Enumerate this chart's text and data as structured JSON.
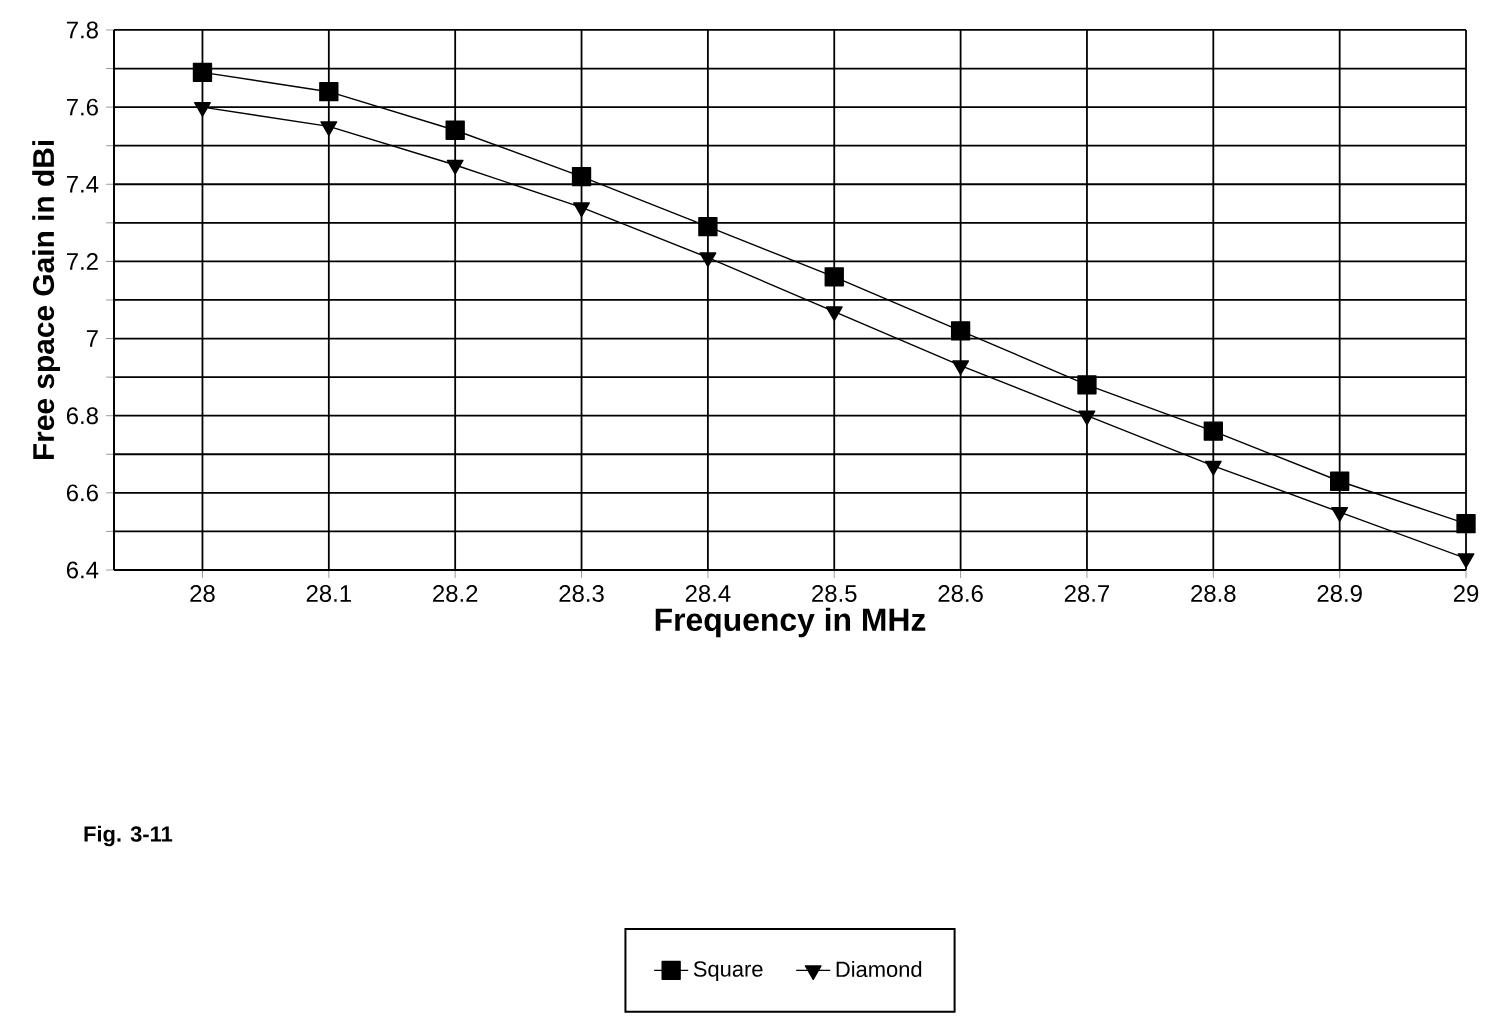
{
  "chart_data": {
    "type": "line",
    "xlabel": "Frequency in MHz",
    "ylabel": "Free space Gain in dBi",
    "x": [
      28,
      28.1,
      28.2,
      28.3,
      28.4,
      28.5,
      28.6,
      28.7,
      28.8,
      28.9,
      29
    ],
    "series": [
      {
        "name": "Square",
        "color": "#000000",
        "marker": "square",
        "values": [
          7.69,
          7.64,
          7.54,
          7.42,
          7.29,
          7.16,
          7.02,
          6.88,
          6.76,
          6.63,
          6.52
        ]
      },
      {
        "name": "Diamond",
        "color": "#000000",
        "marker": "triangle",
        "values": [
          7.6,
          7.55,
          7.45,
          7.34,
          7.21,
          7.07,
          6.93,
          6.8,
          6.67,
          6.55,
          6.43
        ]
      }
    ],
    "xlim": [
      27.93,
      29
    ],
    "xticks": [
      28,
      28.1,
      28.2,
      28.3,
      28.4,
      28.5,
      28.6,
      28.7,
      28.8,
      28.9,
      29
    ],
    "ylim": [
      6.4,
      7.8
    ],
    "yticks": [
      6.4,
      {
        "value": 6.5,
        "label": null
      },
      6.6,
      {
        "value": 6.7,
        "label": null
      },
      6.8,
      {
        "value": 6.9,
        "label": null
      },
      7,
      {
        "value": 7.1,
        "label": null
      },
      7.2,
      {
        "value": 7.3,
        "label": null
      },
      7.4,
      {
        "value": 7.5,
        "label": null
      },
      7.6,
      {
        "value": 7.7,
        "label": null
      },
      7.8
    ],
    "grid": true,
    "legend": "bottom",
    "line_style": "solid",
    "annotations": [
      "Fig. 3-11"
    ]
  }
}
